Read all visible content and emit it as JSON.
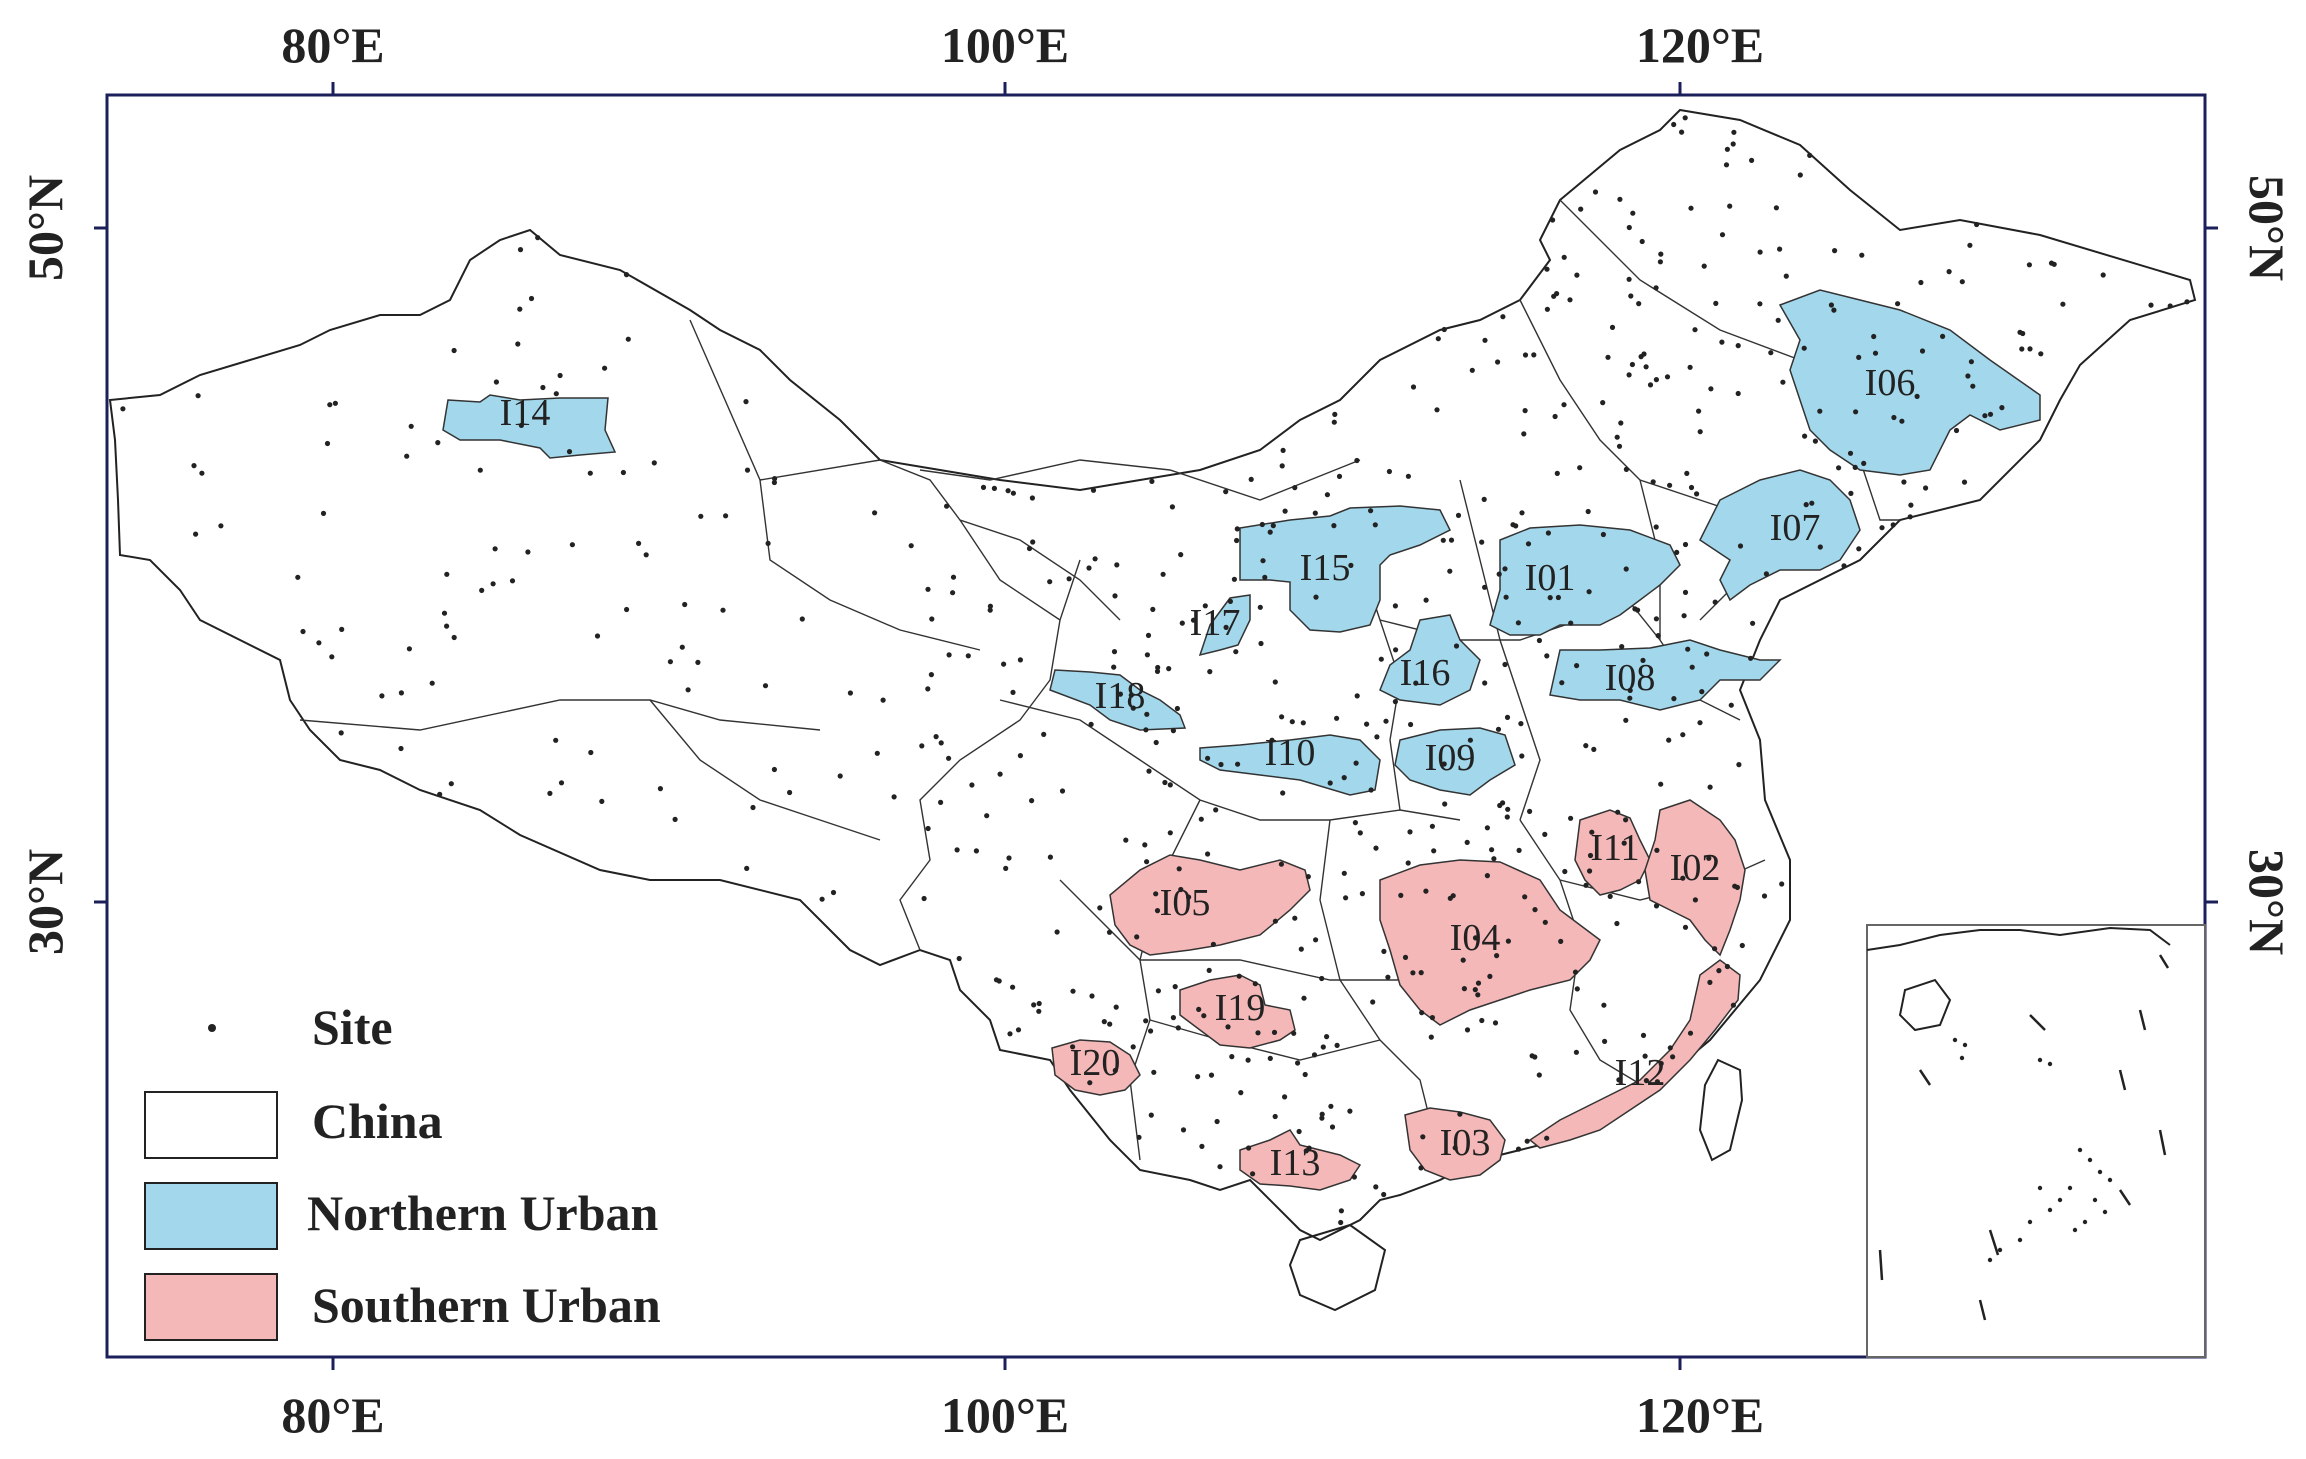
{
  "map": {
    "x_ticks": [
      "80°E",
      "100°E",
      "120°E"
    ],
    "y_ticks": [
      "50°N",
      "30°N"
    ],
    "legend": {
      "site": "Site",
      "china": "China",
      "northern": "Northern Urban",
      "southern": "Southern Urban"
    },
    "colors": {
      "northern": "#a3d8ec",
      "southern": "#f5b8b8",
      "frame": "#1b1f5a"
    },
    "regions": [
      {
        "id": "I01",
        "group": "northern"
      },
      {
        "id": "I02",
        "group": "southern"
      },
      {
        "id": "I03",
        "group": "southern"
      },
      {
        "id": "I04",
        "group": "southern"
      },
      {
        "id": "I05",
        "group": "southern"
      },
      {
        "id": "I06",
        "group": "northern"
      },
      {
        "id": "I07",
        "group": "northern"
      },
      {
        "id": "I08",
        "group": "northern"
      },
      {
        "id": "I09",
        "group": "northern"
      },
      {
        "id": "I10",
        "group": "northern"
      },
      {
        "id": "I11",
        "group": "southern"
      },
      {
        "id": "I12",
        "group": "southern"
      },
      {
        "id": "I13",
        "group": "southern"
      },
      {
        "id": "I14",
        "group": "northern"
      },
      {
        "id": "I15",
        "group": "northern"
      },
      {
        "id": "I16",
        "group": "northern"
      },
      {
        "id": "I17",
        "group": "northern"
      },
      {
        "id": "I18",
        "group": "northern"
      },
      {
        "id": "I19",
        "group": "southern"
      },
      {
        "id": "I20",
        "group": "southern"
      }
    ]
  }
}
